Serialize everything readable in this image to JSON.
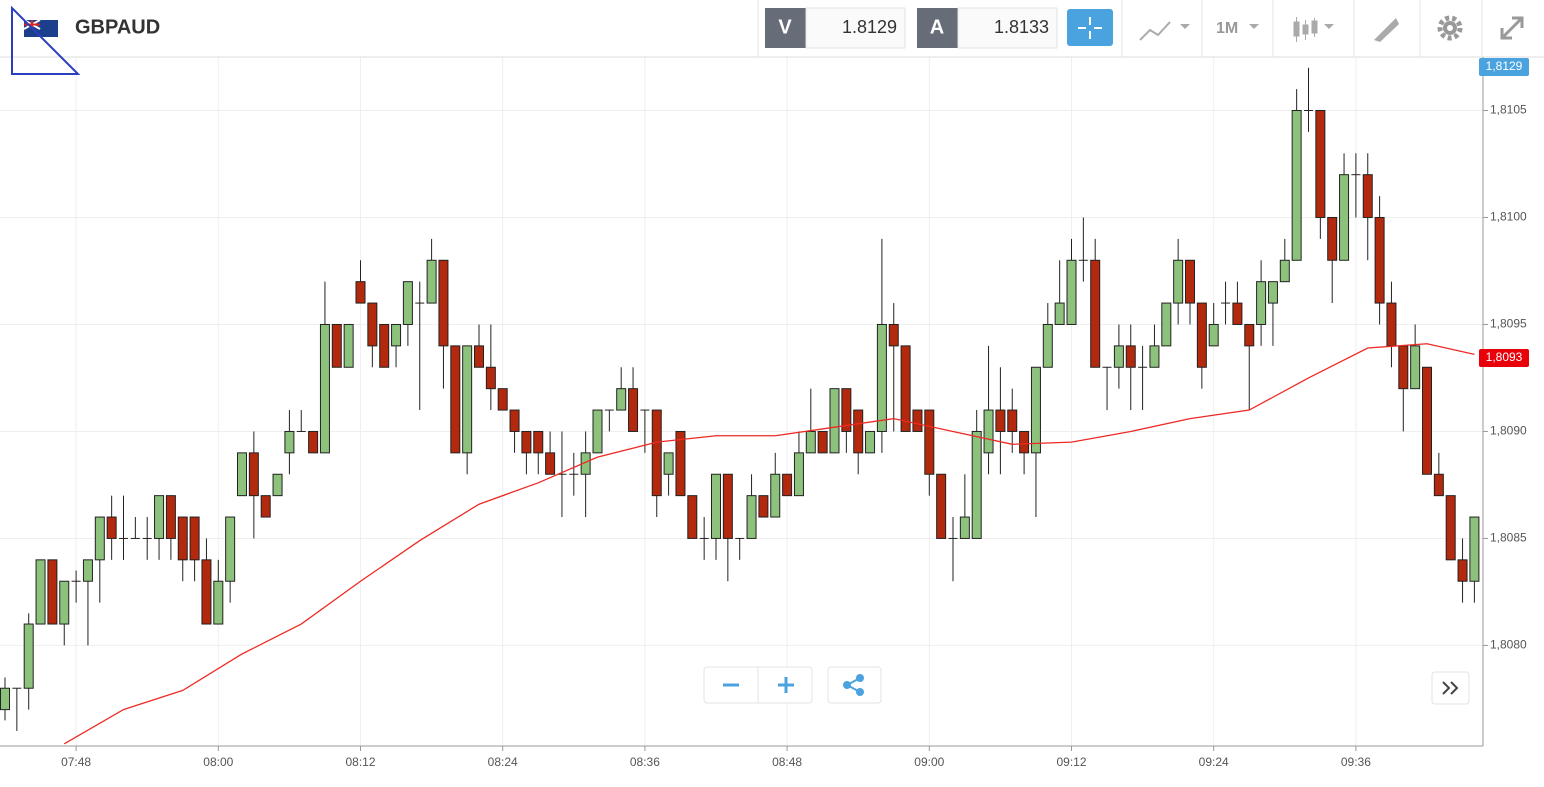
{
  "header": {
    "symbol": "GBPAUD",
    "bid_tag": "V",
    "bid": "1.8129",
    "ask_tag": "A",
    "ask": "1.8133",
    "timeframe": "1M"
  },
  "chart_data": {
    "type": "candlestick",
    "x": [
      "07:42",
      "07:43",
      "07:44",
      "07:45",
      "07:46",
      "07:47",
      "07:48",
      "07:49",
      "07:50",
      "07:51",
      "07:52",
      "07:53",
      "07:54",
      "07:55",
      "07:56",
      "07:57",
      "07:58",
      "07:59",
      "08:00",
      "08:01",
      "08:02",
      "08:03",
      "08:04",
      "08:05",
      "08:06",
      "08:07",
      "08:08",
      "08:09",
      "08:10",
      "08:11",
      "08:12",
      "08:13",
      "08:14",
      "08:15",
      "08:16",
      "08:17",
      "08:18",
      "08:19",
      "08:20",
      "08:21",
      "08:22",
      "08:23",
      "08:24",
      "08:25",
      "08:26",
      "08:27",
      "08:28",
      "08:29",
      "08:30",
      "08:31",
      "08:32",
      "08:33",
      "08:34",
      "08:35",
      "08:36",
      "08:37",
      "08:38",
      "08:39",
      "08:40",
      "08:41",
      "08:42",
      "08:43",
      "08:44",
      "08:45",
      "08:46",
      "08:47",
      "08:48",
      "08:49",
      "08:50",
      "08:51",
      "08:52",
      "08:53",
      "08:54",
      "08:55",
      "08:56",
      "08:57",
      "08:58",
      "08:59",
      "09:00",
      "09:01",
      "09:02",
      "09:03",
      "09:04",
      "09:05",
      "09:06",
      "09:07",
      "09:08",
      "09:09",
      "09:10",
      "09:11",
      "09:12",
      "09:13",
      "09:14",
      "09:15",
      "09:16",
      "09:17",
      "09:18",
      "09:19",
      "09:20",
      "09:21",
      "09:22",
      "09:23",
      "09:24",
      "09:25",
      "09:26",
      "09:27",
      "09:28",
      "09:29",
      "09:30",
      "09:31",
      "09:32",
      "09:33",
      "09:34",
      "09:35",
      "09:36",
      "09:37",
      "09:38",
      "09:39",
      "09:40",
      "09:41",
      "09:42",
      "09:43",
      "09:44",
      "09:45",
      "09:46"
    ],
    "open": [
      1.8077,
      1.8078,
      1.8078,
      1.8081,
      1.8084,
      1.8081,
      1.8083,
      1.8083,
      1.8084,
      1.8086,
      1.8085,
      1.8085,
      1.8085,
      1.8085,
      1.8087,
      1.8086,
      1.8086,
      1.8084,
      1.8081,
      1.8083,
      1.8087,
      1.8089,
      1.8087,
      1.8087,
      1.8089,
      1.809,
      1.809,
      1.8089,
      1.8095,
      1.8093,
      1.8097,
      1.8096,
      1.8095,
      1.8094,
      1.8095,
      1.8096,
      1.8096,
      1.8098,
      1.8094,
      1.8089,
      1.8094,
      1.8093,
      1.8092,
      1.8091,
      1.809,
      1.809,
      1.8089,
      1.8088,
      1.8088,
      1.8088,
      1.8089,
      1.8091,
      1.8091,
      1.8092,
      1.8091,
      1.8091,
      1.8088,
      1.809,
      1.8087,
      1.8085,
      1.8085,
      1.8088,
      1.8085,
      1.8085,
      1.8087,
      1.8086,
      1.8088,
      1.8087,
      1.8089,
      1.809,
      1.8089,
      1.8092,
      1.8091,
      1.8089,
      1.809,
      1.8095,
      1.8094,
      1.8091,
      1.8091,
      1.8088,
      1.8085,
      1.8085,
      1.8085,
      1.8089,
      1.8091,
      1.8091,
      1.809,
      1.8089,
      1.8093,
      1.8095,
      1.8095,
      1.8098,
      1.8098,
      1.8093,
      1.8093,
      1.8094,
      1.8093,
      1.8093,
      1.8094,
      1.8096,
      1.8098,
      1.8096,
      1.8094,
      1.8096,
      1.8096,
      1.8095,
      1.8095,
      1.8096,
      1.8097,
      1.8098,
      1.8105,
      1.8105,
      1.81,
      1.8098,
      1.8102,
      1.8102,
      1.81,
      1.8096,
      1.8094,
      1.8092,
      1.8093,
      1.8088,
      1.8087,
      1.8084,
      1.8083
    ],
    "high": [
      1.80785,
      1.8078,
      1.80815,
      1.8084,
      1.8084,
      1.8083,
      1.80835,
      1.8084,
      1.8086,
      1.8087,
      1.8087,
      1.8086,
      1.8086,
      1.8087,
      1.8087,
      1.8086,
      1.8086,
      1.8085,
      1.8084,
      1.8086,
      1.8089,
      1.809,
      1.8087,
      1.8088,
      1.8091,
      1.8091,
      1.809,
      1.8097,
      1.8095,
      1.8095,
      1.8098,
      1.8096,
      1.8095,
      1.8095,
      1.8097,
      1.8097,
      1.8099,
      1.8098,
      1.8094,
      1.8094,
      1.8095,
      1.8095,
      1.8092,
      1.8091,
      1.809,
      1.809,
      1.809,
      1.809,
      1.8089,
      1.809,
      1.8091,
      1.8091,
      1.8093,
      1.8093,
      1.8091,
      1.8091,
      1.8089,
      1.809,
      1.8087,
      1.8086,
      1.8088,
      1.8088,
      1.8085,
      1.8088,
      1.8087,
      1.8089,
      1.8088,
      1.809,
      1.8092,
      1.809,
      1.8092,
      1.8092,
      1.8091,
      1.809,
      1.8099,
      1.8096,
      1.8094,
      1.8091,
      1.8091,
      1.8088,
      1.8086,
      1.8088,
      1.8091,
      1.8094,
      1.8093,
      1.8092,
      1.809,
      1.8093,
      1.8096,
      1.8098,
      1.8099,
      1.81,
      1.8099,
      1.8093,
      1.8095,
      1.8095,
      1.8094,
      1.8095,
      1.8096,
      1.8099,
      1.8098,
      1.8096,
      1.8096,
      1.8097,
      1.8097,
      1.8095,
      1.8098,
      1.8097,
      1.8099,
      1.8106,
      1.8107,
      1.8105,
      1.81,
      1.8103,
      1.8103,
      1.8103,
      1.8101,
      1.8097,
      1.8094,
      1.8095,
      1.8093,
      1.8089,
      1.8087,
      1.8085,
      1.8086
    ],
    "low": [
      1.80765,
      1.8076,
      1.8077,
      1.8081,
      1.8081,
      1.808,
      1.8082,
      1.808,
      1.8082,
      1.8084,
      1.8084,
      1.8085,
      1.8084,
      1.8084,
      1.8084,
      1.8083,
      1.8083,
      1.8081,
      1.8081,
      1.8082,
      1.8087,
      1.8085,
      1.8086,
      1.8087,
      1.8088,
      1.809,
      1.8089,
      1.8089,
      1.8093,
      1.8093,
      1.8096,
      1.8093,
      1.8093,
      1.8093,
      1.8094,
      1.8091,
      1.8096,
      1.8092,
      1.8089,
      1.8088,
      1.8093,
      1.8091,
      1.8091,
      1.8089,
      1.8088,
      1.8088,
      1.8088,
      1.8086,
      1.8087,
      1.8086,
      1.8089,
      1.809,
      1.8091,
      1.809,
      1.8089,
      1.8086,
      1.8087,
      1.8087,
      1.8085,
      1.8084,
      1.8084,
      1.8083,
      1.8084,
      1.8085,
      1.8086,
      1.8086,
      1.8087,
      1.8087,
      1.8089,
      1.8089,
      1.8089,
      1.8089,
      1.8088,
      1.8089,
      1.8089,
      1.809,
      1.809,
      1.809,
      1.8087,
      1.8085,
      1.8083,
      1.8085,
      1.8085,
      1.8088,
      1.8088,
      1.8089,
      1.8088,
      1.8086,
      1.8093,
      1.8095,
      1.8095,
      1.8097,
      1.8093,
      1.8091,
      1.8092,
      1.8091,
      1.8091,
      1.8093,
      1.8094,
      1.8095,
      1.8095,
      1.8092,
      1.8094,
      1.8095,
      1.8095,
      1.8091,
      1.8094,
      1.8094,
      1.8097,
      1.8098,
      1.8104,
      1.8099,
      1.8096,
      1.8098,
      1.81,
      1.8098,
      1.8095,
      1.8093,
      1.809,
      1.8092,
      1.8088,
      1.8087,
      1.8084,
      1.8082,
      1.8082
    ],
    "close": [
      1.8078,
      1.8078,
      1.8081,
      1.8084,
      1.8081,
      1.8083,
      1.8083,
      1.8084,
      1.8086,
      1.8085,
      1.8085,
      1.8085,
      1.8085,
      1.8087,
      1.8085,
      1.8084,
      1.8084,
      1.8081,
      1.8083,
      1.8086,
      1.8089,
      1.8087,
      1.8086,
      1.8088,
      1.809,
      1.809,
      1.8089,
      1.8095,
      1.8093,
      1.8095,
      1.8096,
      1.8094,
      1.8093,
      1.8095,
      1.8097,
      1.8096,
      1.8098,
      1.8094,
      1.8089,
      1.8094,
      1.8093,
      1.8092,
      1.8091,
      1.809,
      1.8089,
      1.8089,
      1.8088,
      1.8088,
      1.8088,
      1.8089,
      1.8091,
      1.8091,
      1.8092,
      1.809,
      1.8091,
      1.8087,
      1.8089,
      1.8087,
      1.8085,
      1.8085,
      1.8088,
      1.8085,
      1.8085,
      1.8087,
      1.8086,
      1.8088,
      1.8087,
      1.8089,
      1.809,
      1.8089,
      1.8092,
      1.809,
      1.8089,
      1.809,
      1.8095,
      1.8094,
      1.809,
      1.809,
      1.8088,
      1.8085,
      1.8085,
      1.8086,
      1.809,
      1.8091,
      1.809,
      1.809,
      1.8089,
      1.8093,
      1.8095,
      1.8096,
      1.8098,
      1.8098,
      1.8093,
      1.8093,
      1.8094,
      1.8093,
      1.8093,
      1.8094,
      1.8096,
      1.8098,
      1.8096,
      1.8093,
      1.8095,
      1.8096,
      1.8095,
      1.8094,
      1.8097,
      1.8097,
      1.8098,
      1.8105,
      1.8105,
      1.81,
      1.8098,
      1.8102,
      1.8102,
      1.81,
      1.8096,
      1.8094,
      1.8092,
      1.8094,
      1.8088,
      1.8087,
      1.8084,
      1.8083,
      1.8086
    ],
    "up_color": "#8dc27c",
    "down_color": "#b3290d",
    "moving_average": {
      "color": "#ee2a24",
      "x": [
        "07:47",
        "07:52",
        "07:57",
        "08:02",
        "08:07",
        "08:12",
        "08:17",
        "08:22",
        "08:27",
        "08:32",
        "08:37",
        "08:42",
        "08:47",
        "08:52",
        "08:57",
        "09:02",
        "09:07",
        "09:12",
        "09:17",
        "09:22",
        "09:27",
        "09:32",
        "09:37",
        "09:42",
        "09:46"
      ],
      "values": [
        1.80754,
        1.8077,
        1.80779,
        1.80796,
        1.8081,
        1.8083,
        1.80849,
        1.80866,
        1.80876,
        1.80888,
        1.80895,
        1.80898,
        1.80898,
        1.80902,
        1.80906,
        1.809,
        1.80894,
        1.80895,
        1.809,
        1.80906,
        1.8091,
        1.80925,
        1.80939,
        1.80941,
        1.80936
      ]
    },
    "price_labels": [
      {
        "label": "1,8129",
        "color": "#4aa3df"
      },
      {
        "label": "1,8093",
        "color": "#e8000b"
      }
    ],
    "ylim": [
      1.80753,
      1.81075
    ],
    "yticks": [
      {
        "value": 1.808,
        "label": "1,8080"
      },
      {
        "value": 1.8085,
        "label": "1,8085"
      },
      {
        "value": 1.809,
        "label": "1,8090"
      },
      {
        "value": 1.8095,
        "label": "1,8095"
      },
      {
        "value": 1.81,
        "label": "1,8100"
      },
      {
        "value": 1.8105,
        "label": "1,8105"
      }
    ],
    "xticks": [
      "07:48",
      "08:00",
      "08:12",
      "08:24",
      "08:36",
      "08:48",
      "09:00",
      "09:12",
      "09:24",
      "09:36"
    ],
    "grid": true
  }
}
